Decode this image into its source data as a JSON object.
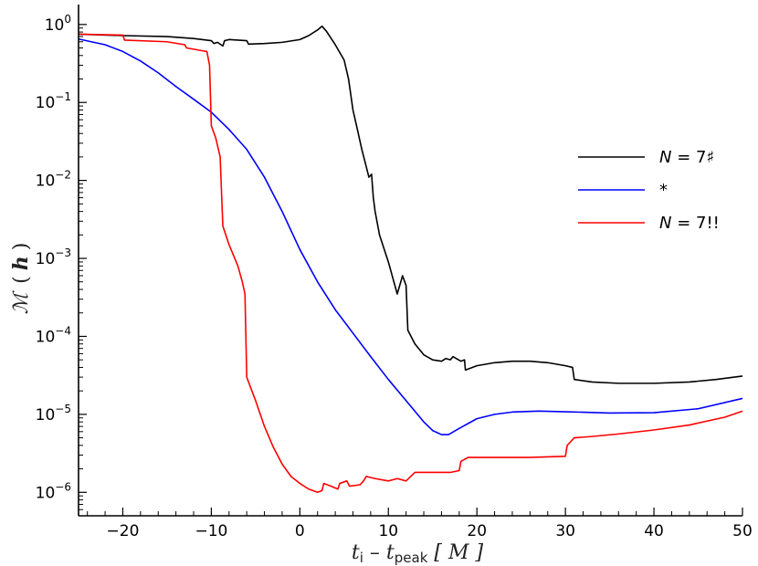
{
  "chart_data": {
    "type": "line",
    "xlabel": "tᵢ − t_peak [M]",
    "xlabel_parts": {
      "t1": "t",
      "sub1": "i",
      "minus": " – ",
      "t2": "t",
      "sub2": "peak",
      "unit": " [ M ]"
    },
    "ylabel": "ℳ ( h )",
    "ylabel_parts": {
      "sym": "ℳ",
      "open": "(",
      "h": "h",
      "close": ")"
    },
    "xlim": [
      -25,
      50
    ],
    "ylim": [
      5e-07,
      1.8
    ],
    "yscale": "log",
    "x_ticks": [
      -20,
      -10,
      0,
      10,
      20,
      30,
      40,
      50
    ],
    "x_tick_labels": [
      "−20",
      "−10",
      "0",
      "10",
      "20",
      "30",
      "40",
      "50"
    ],
    "y_ticks": [
      {
        "value": 1,
        "base": "10",
        "exp": "0"
      },
      {
        "value": 0.1,
        "base": "10",
        "exp": "−1"
      },
      {
        "value": 0.01,
        "base": "10",
        "exp": "−2"
      },
      {
        "value": 0.001,
        "base": "10",
        "exp": "−3"
      },
      {
        "value": 0.0001,
        "base": "10",
        "exp": "−4"
      },
      {
        "value": 1e-05,
        "base": "10",
        "exp": "−5"
      },
      {
        "value": 1e-06,
        "base": "10",
        "exp": "−6"
      }
    ],
    "grid": false,
    "legend_position": "right",
    "series": [
      {
        "name": "N = 7♯",
        "legend_label": "N = 7♯",
        "color": "#000000",
        "points": [
          [
            -25,
            0.75
          ],
          [
            -20,
            0.72
          ],
          [
            -15,
            0.7
          ],
          [
            -12,
            0.66
          ],
          [
            -10,
            0.62
          ],
          [
            -9.7,
            0.57
          ],
          [
            -9.3,
            0.59
          ],
          [
            -8.7,
            0.53
          ],
          [
            -8.5,
            0.62
          ],
          [
            -8,
            0.64
          ],
          [
            -7,
            0.63
          ],
          [
            -6,
            0.62
          ],
          [
            -5.8,
            0.56
          ],
          [
            -4,
            0.57
          ],
          [
            -2,
            0.59
          ],
          [
            0,
            0.64
          ],
          [
            1,
            0.72
          ],
          [
            2,
            0.85
          ],
          [
            2.5,
            0.95
          ],
          [
            3,
            0.82
          ],
          [
            4,
            0.55
          ],
          [
            5,
            0.35
          ],
          [
            5.5,
            0.2
          ],
          [
            6,
            0.08
          ],
          [
            6.5,
            0.045
          ],
          [
            7,
            0.025
          ],
          [
            7.5,
            0.015
          ],
          [
            7.8,
            0.011
          ],
          [
            8.1,
            0.012
          ],
          [
            8.3,
            0.006
          ],
          [
            8.5,
            0.004
          ],
          [
            9,
            0.002
          ],
          [
            10,
            0.0009
          ],
          [
            11,
            0.00035
          ],
          [
            11.4,
            0.0005
          ],
          [
            11.6,
            0.0006
          ],
          [
            12,
            0.00045
          ],
          [
            12.2,
            0.00012
          ],
          [
            13,
            8e-05
          ],
          [
            14,
            5.8e-05
          ],
          [
            15,
            5e-05
          ],
          [
            16,
            4.8e-05
          ],
          [
            16.5,
            5.2e-05
          ],
          [
            17,
            5e-05
          ],
          [
            17.3,
            5.5e-05
          ],
          [
            18.2,
            4.8e-05
          ],
          [
            18.6,
            5e-05
          ],
          [
            18.7,
            3.7e-05
          ],
          [
            20,
            4.2e-05
          ],
          [
            22,
            4.6e-05
          ],
          [
            24,
            4.8e-05
          ],
          [
            26,
            4.8e-05
          ],
          [
            28,
            4.6e-05
          ],
          [
            30,
            4.2e-05
          ],
          [
            30.8,
            4e-05
          ],
          [
            31,
            2.8e-05
          ],
          [
            33,
            2.6e-05
          ],
          [
            36,
            2.5e-05
          ],
          [
            40,
            2.5e-05
          ],
          [
            44,
            2.6e-05
          ],
          [
            47,
            2.8e-05
          ],
          [
            50,
            3.1e-05
          ]
        ]
      },
      {
        "name": "*",
        "legend_label": "*",
        "color": "#0000ff",
        "points": [
          [
            -25,
            0.65
          ],
          [
            -22,
            0.55
          ],
          [
            -20,
            0.45
          ],
          [
            -18,
            0.34
          ],
          [
            -16,
            0.24
          ],
          [
            -14,
            0.16
          ],
          [
            -12,
            0.11
          ],
          [
            -10,
            0.075
          ],
          [
            -8,
            0.045
          ],
          [
            -6,
            0.025
          ],
          [
            -4,
            0.011
          ],
          [
            -2,
            0.004
          ],
          [
            0,
            0.0013
          ],
          [
            2,
            0.0005
          ],
          [
            4,
            0.00022
          ],
          [
            6,
            0.00011
          ],
          [
            8,
            5.5e-05
          ],
          [
            10,
            2.8e-05
          ],
          [
            12,
            1.5e-05
          ],
          [
            14,
            8e-06
          ],
          [
            15,
            6.2e-06
          ],
          [
            16,
            5.5e-06
          ],
          [
            16.8,
            5.5e-06
          ],
          [
            18,
            6.6e-06
          ],
          [
            20,
            8.8e-06
          ],
          [
            22,
            1e-05
          ],
          [
            24,
            1.07e-05
          ],
          [
            27,
            1.1e-05
          ],
          [
            30,
            1.08e-05
          ],
          [
            35,
            1.04e-05
          ],
          [
            40,
            1.05e-05
          ],
          [
            45,
            1.18e-05
          ],
          [
            50,
            1.6e-05
          ]
        ]
      },
      {
        "name": "N = 7!!",
        "legend_label": "N = 7!!",
        "color": "#ff0000",
        "points": [
          [
            -25,
            0.75
          ],
          [
            -20,
            0.73
          ],
          [
            -19.8,
            0.63
          ],
          [
            -15,
            0.6
          ],
          [
            -13,
            0.55
          ],
          [
            -12.8,
            0.5
          ],
          [
            -11,
            0.46
          ],
          [
            -10.5,
            0.45
          ],
          [
            -10.2,
            0.3
          ],
          [
            -10,
            0.05
          ],
          [
            -9.5,
            0.035
          ],
          [
            -9,
            0.02
          ],
          [
            -8.9,
            0.01
          ],
          [
            -8.7,
            0.0026
          ],
          [
            -8,
            0.0015
          ],
          [
            -7,
            0.0008
          ],
          [
            -6.5,
            0.0005
          ],
          [
            -6.2,
            0.00035
          ],
          [
            -6,
            3e-05
          ],
          [
            -5,
            1.5e-05
          ],
          [
            -4,
            7e-06
          ],
          [
            -3,
            3.8e-06
          ],
          [
            -2,
            2.3e-06
          ],
          [
            -1,
            1.6e-06
          ],
          [
            0,
            1.3e-06
          ],
          [
            1,
            1.1e-06
          ],
          [
            2,
            1e-06
          ],
          [
            2.5,
            1.05e-06
          ],
          [
            2.7,
            1.3e-06
          ],
          [
            3.5,
            1.2e-06
          ],
          [
            4.3,
            1.1e-06
          ],
          [
            4.5,
            1.3e-06
          ],
          [
            5.3,
            1.4e-06
          ],
          [
            5.6,
            1.2e-06
          ],
          [
            6.8,
            1.25e-06
          ],
          [
            7.2,
            1.4e-06
          ],
          [
            7.5,
            1.6e-06
          ],
          [
            8.5,
            1.5e-06
          ],
          [
            10,
            1.4e-06
          ],
          [
            11,
            1.5e-06
          ],
          [
            12,
            1.4e-06
          ],
          [
            13,
            1.8e-06
          ],
          [
            14,
            1.8e-06
          ],
          [
            17,
            1.8e-06
          ],
          [
            18,
            1.9e-06
          ],
          [
            18.2,
            2.5e-06
          ],
          [
            19,
            2.8e-06
          ],
          [
            22,
            2.8e-06
          ],
          [
            26,
            2.8e-06
          ],
          [
            30,
            2.9e-06
          ],
          [
            30.2,
            4e-06
          ],
          [
            31,
            5e-06
          ],
          [
            33,
            5.2e-06
          ],
          [
            36,
            5.6e-06
          ],
          [
            40,
            6.3e-06
          ],
          [
            44,
            7.3e-06
          ],
          [
            48,
            9.2e-06
          ],
          [
            50,
            1.1e-05
          ]
        ]
      }
    ]
  }
}
